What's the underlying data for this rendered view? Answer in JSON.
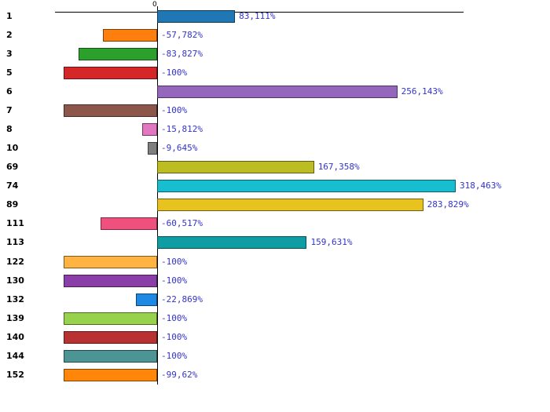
{
  "chart_data": {
    "type": "bar",
    "orientation": "horizontal",
    "title": "",
    "xlabel": "",
    "ylabel": "",
    "axis_zero_label": "0",
    "grid": false,
    "legend": false,
    "xlim": [
      -110,
      330
    ],
    "value_label_color": "#3333CC",
    "categories": [
      "1",
      "2",
      "3",
      "5",
      "6",
      "7",
      "8",
      "10",
      "69",
      "74",
      "89",
      "111",
      "113",
      "122",
      "130",
      "132",
      "139",
      "140",
      "144",
      "152"
    ],
    "values": [
      83.111,
      -57.782,
      -83.827,
      -100,
      256.143,
      -100,
      -15.812,
      -9.645,
      167.358,
      318.463,
      283.829,
      -60.517,
      159.631,
      -100,
      -100,
      -22.869,
      -100,
      -100,
      -100,
      -99.62
    ],
    "labels": [
      "83,111%",
      "-57,782%",
      "-83,827%",
      "-100%",
      "256,143%",
      "-100%",
      "-15,812%",
      "-9,645%",
      "167,358%",
      "318,463%",
      "283,829%",
      "-60,517%",
      "159,631%",
      "-100%",
      "-100%",
      "-22,869%",
      "-100%",
      "-100%",
      "-100%",
      "-99,62%"
    ],
    "colors": [
      "#1F77B4",
      "#FF7F0E",
      "#2CA02C",
      "#D62728",
      "#9467BD",
      "#8C564B",
      "#E377C2",
      "#7F7F7F",
      "#BCBD22",
      "#17BECF",
      "#E8C320",
      "#F0507E",
      "#0D9DA3",
      "#FFB340",
      "#8A3FA8",
      "#1E88E5",
      "#97D24D",
      "#B83232",
      "#4D9494",
      "#FF8608"
    ]
  }
}
